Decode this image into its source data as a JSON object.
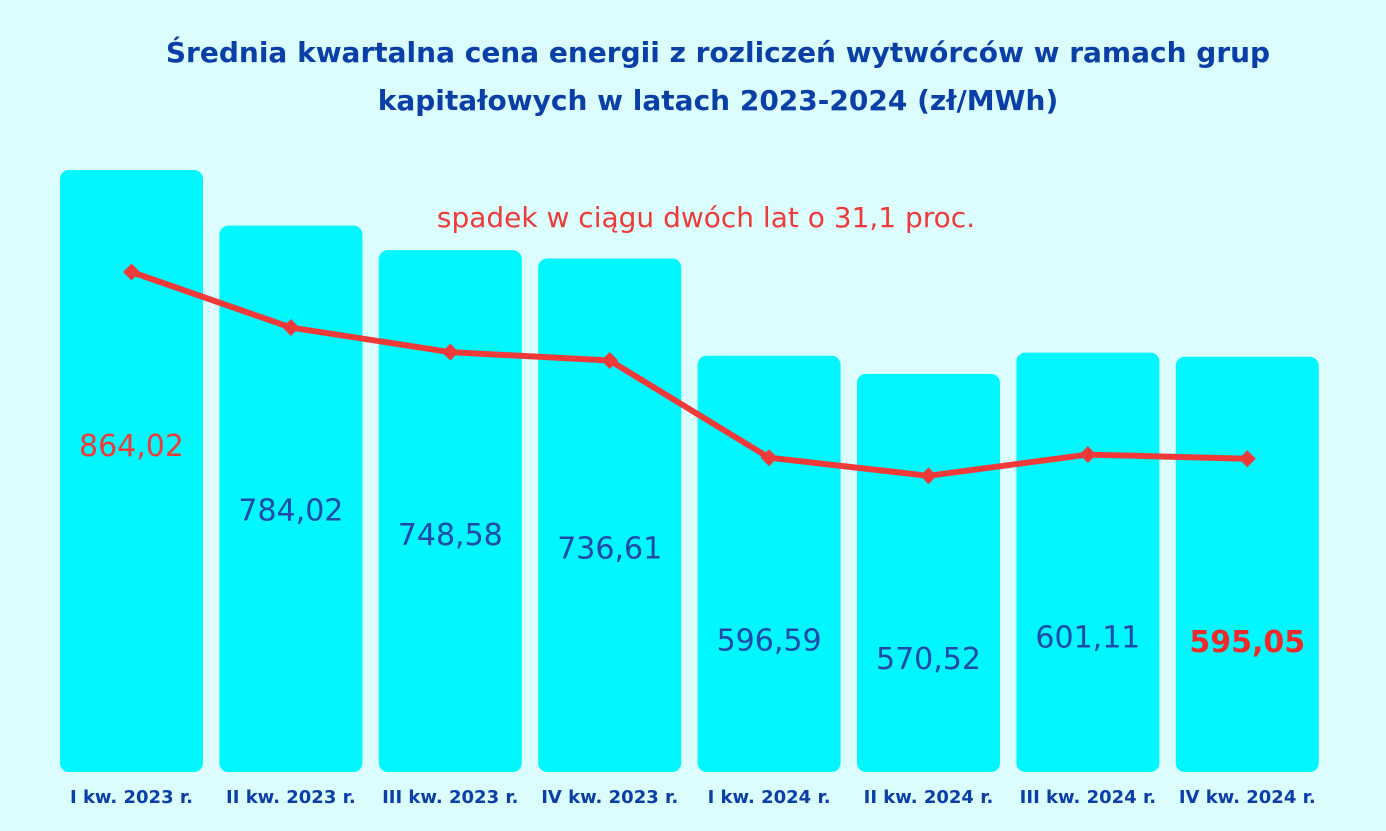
{
  "chart_data": {
    "type": "bar",
    "title_lines": [
      "Średnia kwartalna cena energii z rozliczeń wytwórców w ramach grup",
      "kapitałowych w latach 2023-2024 (zł/MWh)"
    ],
    "annotation": "spadek w ciągu dwóch lat o 31,1 proc.",
    "categories": [
      "I kw. 2023 r.",
      "II kw. 2023 r.",
      "III kw. 2023 r.",
      "IV kw. 2023 r.",
      "I kw. 2024 r.",
      "II kw. 2024 r.",
      "III kw. 2024 r.",
      "IV kw. 2024 r."
    ],
    "values": [
      864.02,
      784.02,
      748.58,
      736.61,
      596.59,
      570.52,
      601.11,
      595.05
    ],
    "value_labels": [
      "864,02",
      "784,02",
      "748,58",
      "736,61",
      "596,59",
      "570,52",
      "601,11",
      "595,05"
    ],
    "overlay_line": "same values drawn as a trend line",
    "ylim": [
      0,
      900
    ],
    "grid": false,
    "legend": "none",
    "colors": {
      "bar": "#00f7fd",
      "line": "#f03a3a",
      "title": "#0a3fa8",
      "value_label": "#1f4aa8",
      "highlight_label": "#ee2a2a",
      "background": "#dcfdfd"
    }
  }
}
